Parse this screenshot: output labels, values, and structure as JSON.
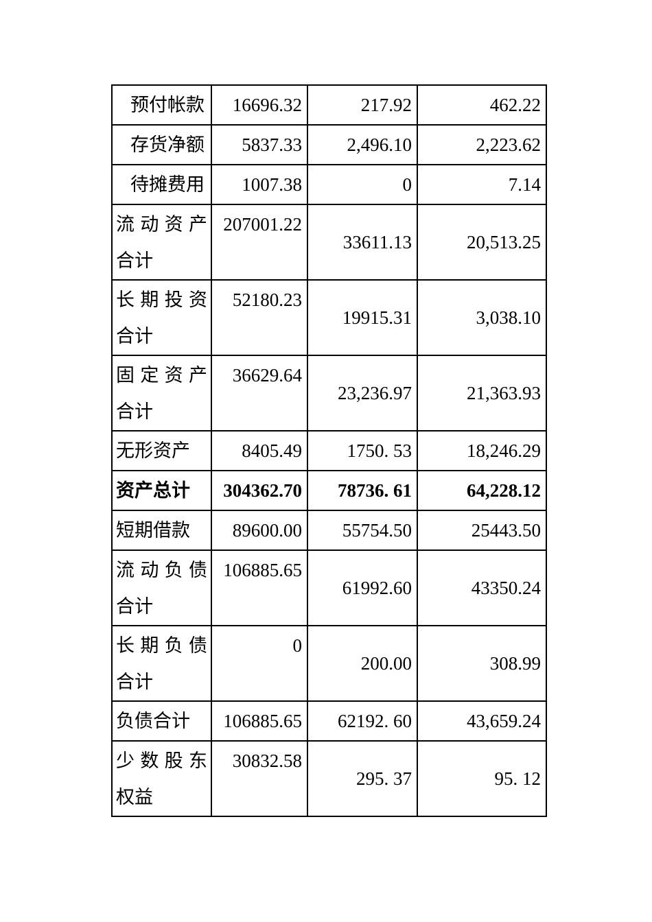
{
  "colors": {
    "background": "#ffffff",
    "text": "#000000",
    "border": "#000000"
  },
  "table": {
    "rows": [
      {
        "label": "预付帐款",
        "v1": "16696.32",
        "v2": "217.92",
        "v3": "462.22"
      },
      {
        "label": "存货净额",
        "v1": "5837.33",
        "v2": "2,496.10",
        "v3": "2,223.62"
      },
      {
        "label": "待摊费用",
        "v1": "1007.38",
        "v2": "0",
        "v3": "7.14"
      },
      {
        "label": "流动资产合计",
        "v1": "207001.22",
        "v2": "33611.13",
        "v3": "20,513.25"
      },
      {
        "label": "长期投资合计",
        "v1": "52180.23",
        "v2": "19915.31",
        "v3": "3,038.10"
      },
      {
        "label": "固定资产合计",
        "v1": "36629.64",
        "v2": "23,236.97",
        "v3": "21,363.93"
      },
      {
        "label": "无形资产",
        "v1": "8405.49",
        "v2": "1750. 53",
        "v3": "18,246.29"
      },
      {
        "label": "资产总计",
        "v1": "304362.70",
        "v2": "78736. 61",
        "v3": "64,228.12"
      },
      {
        "label": "短期借款",
        "v1": "89600.00",
        "v2": "55754.50",
        "v3": "25443.50"
      },
      {
        "label": "流动负债合计",
        "v1": "106885.65",
        "v2": "61992.60",
        "v3": "43350.24"
      },
      {
        "label": "长期负债合计",
        "v1": "0",
        "v2": "200.00",
        "v3": "308.99"
      },
      {
        "label": "负债合计",
        "v1": "106885.65",
        "v2": "62192. 60",
        "v3": "43,659.24"
      },
      {
        "label": "少数股东权益",
        "v1": "30832.58",
        "v2": "295. 37",
        "v3": "95. 12"
      }
    ]
  }
}
